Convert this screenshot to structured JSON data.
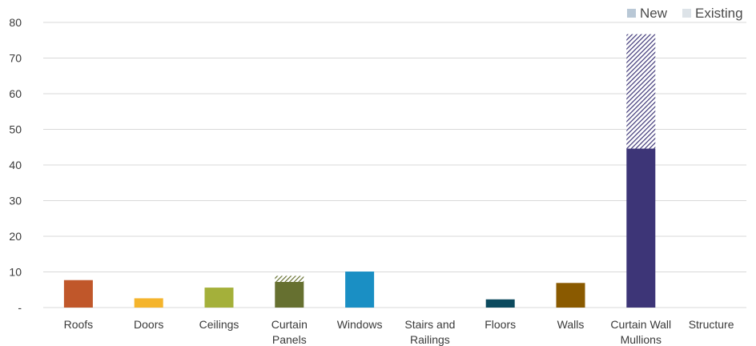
{
  "chart_data": {
    "type": "bar",
    "stacked": true,
    "categories": [
      [
        "Roofs"
      ],
      [
        "Doors"
      ],
      [
        "Ceilings"
      ],
      [
        "Curtain",
        "Panels"
      ],
      [
        "Windows"
      ],
      [
        "Stairs and",
        "Railings"
      ],
      [
        "Floors"
      ],
      [
        "Walls"
      ],
      [
        "Curtain Wall",
        "Mullions"
      ],
      [
        "Structure"
      ]
    ],
    "series": [
      {
        "name": "New",
        "values": [
          7.7,
          2.6,
          5.6,
          7.2,
          10.1,
          0,
          2.3,
          6.9,
          44.6,
          0
        ]
      },
      {
        "name": "Existing",
        "values": [
          0,
          0,
          0,
          1.7,
          0,
          0,
          0,
          0,
          32.1,
          0
        ]
      }
    ],
    "bar_colors": [
      "#c0572a",
      "#f4b42c",
      "#a4b03a",
      "#667030",
      "#1a8fc4",
      "#888888",
      "#0c4a5e",
      "#8a5a00",
      "#3d3577",
      "#888888"
    ],
    "ylim": [
      0,
      80
    ],
    "yticks": [
      0,
      10,
      20,
      30,
      40,
      50,
      60,
      70,
      80
    ],
    "ytick_labels": [
      "-",
      "10",
      "20",
      "30",
      "40",
      "50",
      "60",
      "70",
      "80"
    ],
    "grid": true,
    "legend": {
      "position": "top-right",
      "entries": [
        {
          "label": "New",
          "color": "#b9c8d6"
        },
        {
          "label": "Existing",
          "color": "#dde3e8"
        }
      ]
    },
    "title": "",
    "xlabel": "",
    "ylabel": ""
  }
}
